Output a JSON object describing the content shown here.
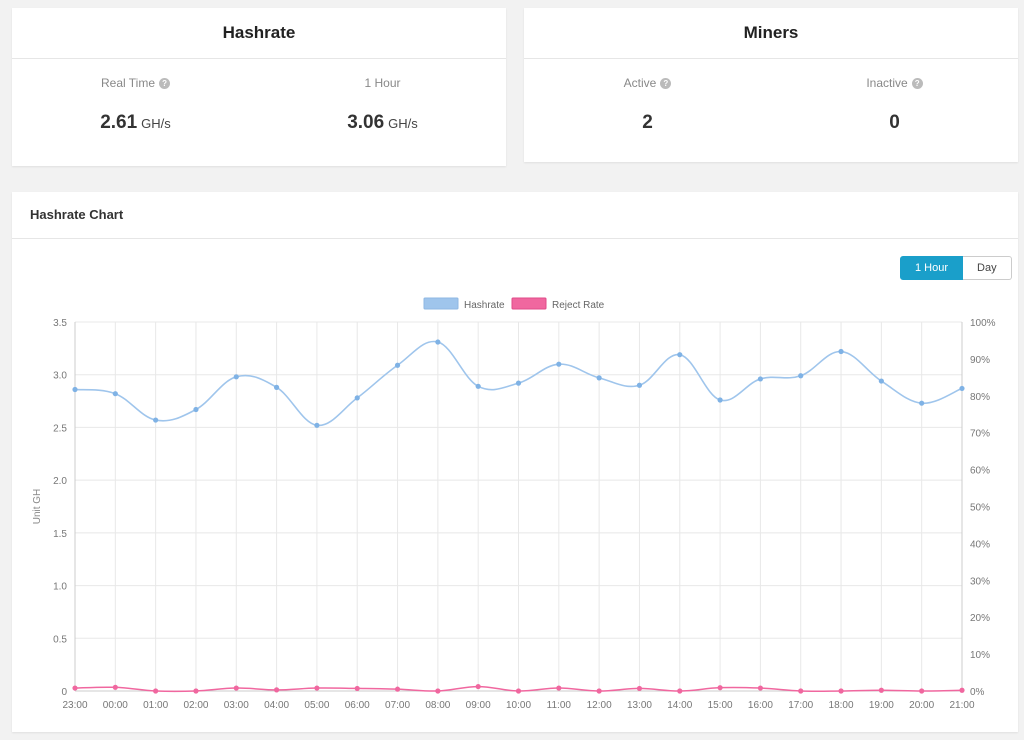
{
  "hashrate_card": {
    "title": "Hashrate",
    "realtime_label": "Real Time",
    "realtime_value": "2.61",
    "realtime_unit": "GH/s",
    "hour_label": "1 Hour",
    "hour_value": "3.06",
    "hour_unit": "GH/s"
  },
  "miners_card": {
    "title": "Miners",
    "active_label": "Active",
    "active_value": "2",
    "inactive_label": "Inactive",
    "inactive_value": "0"
  },
  "chart_card": {
    "title": "Hashrate Chart",
    "range_buttons": [
      {
        "label": "1 Hour",
        "active": true
      },
      {
        "label": "Day",
        "active": false
      }
    ]
  },
  "colors": {
    "hashrate": "#9fc5ec",
    "hashrate_point": "#7fb2e5",
    "reject": "#f0679f",
    "accent": "#1a9fca"
  },
  "chart_data": {
    "type": "line",
    "x": [
      "23:00",
      "00:00",
      "01:00",
      "02:00",
      "03:00",
      "04:00",
      "05:00",
      "06:00",
      "07:00",
      "08:00",
      "09:00",
      "10:00",
      "11:00",
      "12:00",
      "13:00",
      "14:00",
      "15:00",
      "16:00",
      "17:00",
      "18:00",
      "19:00",
      "20:00",
      "21:00"
    ],
    "series": [
      {
        "name": "Hashrate",
        "axis": "left",
        "values": [
          2.86,
          2.82,
          2.57,
          2.67,
          2.98,
          2.88,
          2.52,
          2.78,
          3.09,
          3.31,
          2.89,
          2.92,
          3.1,
          2.97,
          2.9,
          3.19,
          2.76,
          2.96,
          2.99,
          3.22,
          2.94,
          2.73,
          2.87
        ]
      },
      {
        "name": "Reject Rate",
        "axis": "right",
        "values": [
          0.8,
          1.0,
          0.0,
          0.0,
          0.8,
          0.3,
          0.8,
          0.7,
          0.5,
          0.0,
          1.2,
          0.0,
          0.8,
          0.0,
          0.7,
          0.0,
          0.9,
          0.8,
          0.0,
          0.0,
          0.2,
          0.0,
          0.2
        ]
      }
    ],
    "ylabel": "Unit GH",
    "ylim": [
      0,
      3.5
    ],
    "yticks": [
      "0",
      "0.5",
      "1.0",
      "1.5",
      "2.0",
      "2.5",
      "3.0",
      "3.5"
    ],
    "y2lim": [
      0,
      100
    ],
    "y2ticks": [
      "0%",
      "10%",
      "20%",
      "30%",
      "40%",
      "50%",
      "60%",
      "70%",
      "80%",
      "90%",
      "100%"
    ],
    "grid": true,
    "legend": "top-center"
  }
}
